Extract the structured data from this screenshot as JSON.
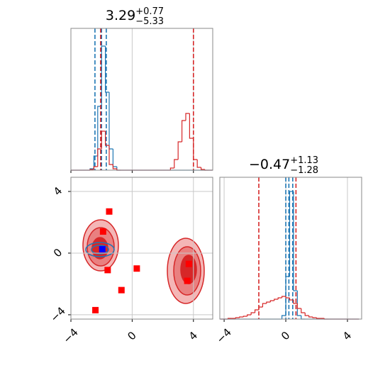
{
  "chart_data": [
    {
      "type": "histogram",
      "title": {
        "value": "3.29",
        "plus": "+0.77",
        "minus": "−5.33"
      },
      "bins": [
        -4,
        -3.75,
        -3.5,
        -3.25,
        -3,
        -2.75,
        -2.5,
        -2.25,
        -2,
        -1.75,
        -1.5,
        -1.25,
        -1,
        -0.75,
        -0.5,
        -0.25,
        0,
        0.25,
        0.5,
        0.75,
        1,
        1.25,
        1.5,
        1.75,
        2,
        2.25,
        2.5,
        2.75,
        3,
        3.25,
        3.5,
        3.75,
        4,
        4.25,
        4.5,
        4.75,
        5,
        5.25
      ],
      "series": [
        {
          "color": "#1f77b4",
          "values": [
            0,
            0,
            0,
            0,
            0,
            2,
            20,
            90,
            175,
            110,
            30,
            5,
            0,
            0,
            0,
            0,
            0,
            0,
            0,
            0,
            0,
            0,
            0,
            0,
            0,
            0,
            0,
            0,
            0,
            0,
            0,
            0,
            0,
            0,
            0,
            0,
            0
          ],
          "quantiles": [
            -2.43,
            -2.0,
            -1.69
          ]
        },
        {
          "color": "#d62728",
          "values": [
            0,
            0,
            0,
            0,
            0,
            1,
            5,
            30,
            55,
            35,
            8,
            2,
            0,
            0,
            0,
            0,
            0,
            0,
            0,
            0,
            0,
            0,
            0,
            0,
            0,
            0,
            3,
            15,
            40,
            70,
            80,
            45,
            15,
            4,
            1,
            0,
            0
          ],
          "quantiles": [
            -2.06,
            4.0
          ]
        }
      ],
      "xlim": [
        -4,
        5.26
      ],
      "ylim": [
        0,
        200
      ],
      "xticks": [
        -4,
        0,
        4
      ],
      "xticklabels": false,
      "grid": true
    },
    {
      "type": "scatter",
      "series": [
        {
          "color": "#ff0000",
          "x": [
            -1.5,
            -1.9,
            -1.6,
            0.3,
            -0.7,
            -2.4,
            3.7,
            3.6
          ],
          "y": [
            2.7,
            1.4,
            -1.1,
            -1.0,
            -2.4,
            -3.7,
            -0.7,
            -1.8
          ]
        },
        {
          "color": "#0000ff",
          "x": [
            -1.95
          ],
          "y": [
            0.25
          ]
        }
      ],
      "xlim": [
        -4,
        5.26
      ],
      "ylim": [
        -4.28,
        4.92
      ],
      "xticks": [
        {
          "value": -4,
          "label": "−4"
        },
        0,
        4
      ],
      "yticks": [
        {
          "value": -4,
          "label": "−4"
        },
        0,
        4
      ],
      "xticklabels": true,
      "grid": true
    },
    {
      "type": "histogram",
      "title": {
        "value": "−0.47",
        "plus": "+1.13",
        "minus": "−1.28"
      },
      "bins": [
        -4.25,
        -4,
        -3.75,
        -3.5,
        -3.25,
        -3,
        -2.75,
        -2.5,
        -2.25,
        -2,
        -1.75,
        -1.5,
        -1.25,
        -1,
        -0.75,
        -0.5,
        -0.25,
        0,
        0.25,
        0.5,
        0.75,
        1,
        1.25,
        1.5,
        1.75,
        2,
        2.25,
        2.5,
        2.75,
        3,
        3.25,
        3.5,
        3.75,
        4,
        4.25,
        4.5,
        4.75
      ],
      "series": [
        {
          "color": "#1f77b4",
          "values": [
            0,
            0,
            0,
            0,
            0,
            0,
            0,
            0,
            0,
            0,
            0,
            0,
            0,
            0,
            0,
            0,
            5,
            60,
            180,
            40,
            5,
            0,
            0,
            0,
            0,
            0,
            0,
            0,
            0,
            0,
            0,
            0,
            0,
            0,
            0,
            0
          ],
          "quantiles": [
            0.0,
            0.2,
            0.45
          ]
        },
        {
          "color": "#d62728",
          "values": [
            0,
            0,
            1,
            1,
            2,
            3,
            4,
            6,
            9,
            13,
            17,
            22,
            24,
            26,
            28,
            30,
            32,
            30,
            27,
            22,
            15,
            9,
            5,
            3,
            2,
            1,
            1,
            0,
            0,
            0,
            0,
            0,
            0,
            0,
            0,
            0
          ],
          "quantiles": [
            -1.75,
            0.66
          ]
        }
      ],
      "xlim": [
        -4.28,
        4.92
      ],
      "ylim": [
        0,
        200
      ],
      "xticks": [
        {
          "value": -4,
          "label": "−4"
        },
        0,
        4
      ],
      "xticklabels": true,
      "grid": true
    }
  ]
}
